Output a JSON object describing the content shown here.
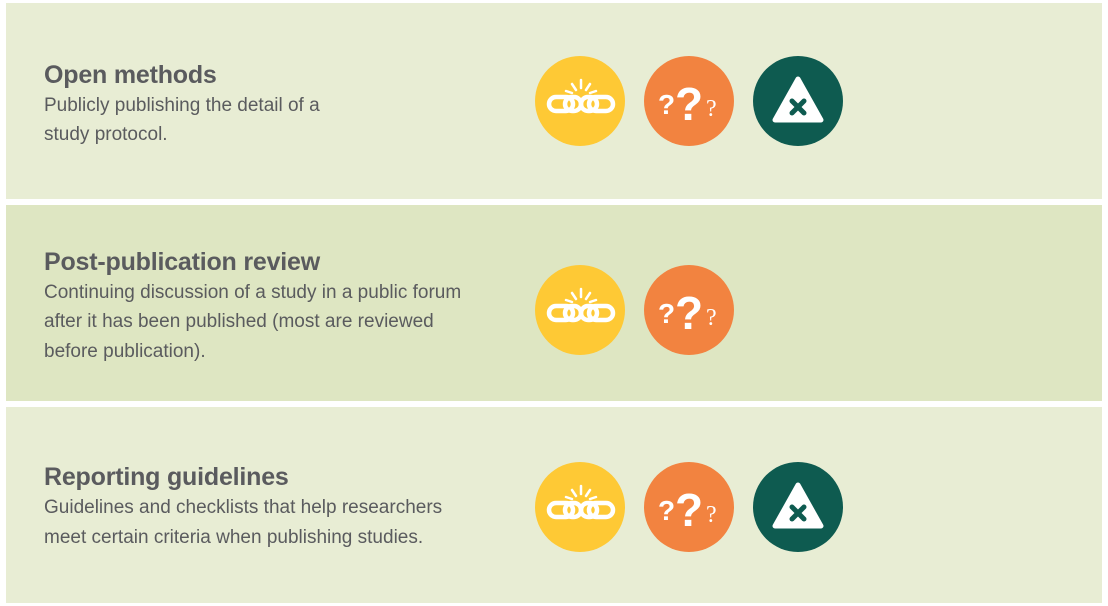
{
  "items": [
    {
      "title": "Open methods",
      "description_lines": [
        "Publicly publishing the detail of a",
        "study protocol."
      ],
      "icons": [
        "broken-chain-icon",
        "question-marks-icon",
        "warning-x-icon"
      ]
    },
    {
      "title": "Post-publication review",
      "description_lines": [
        "Continuing discussion of a study in a public forum",
        "after it has been published (most are reviewed",
        "before publication)."
      ],
      "icons": [
        "broken-chain-icon",
        "question-marks-icon"
      ]
    },
    {
      "title": "Reporting guidelines",
      "description_lines": [
        "Guidelines and checklists that help researchers",
        "meet certain criteria when publishing studies."
      ],
      "icons": [
        "broken-chain-icon",
        "question-marks-icon",
        "warning-x-icon"
      ]
    }
  ],
  "colors": {
    "panel_light": "#e8edd4",
    "panel_dark": "#dee6c2",
    "text": "#5a5b5e",
    "yellow": "#fec935",
    "orange": "#f28340",
    "teal": "#0e5b50"
  }
}
